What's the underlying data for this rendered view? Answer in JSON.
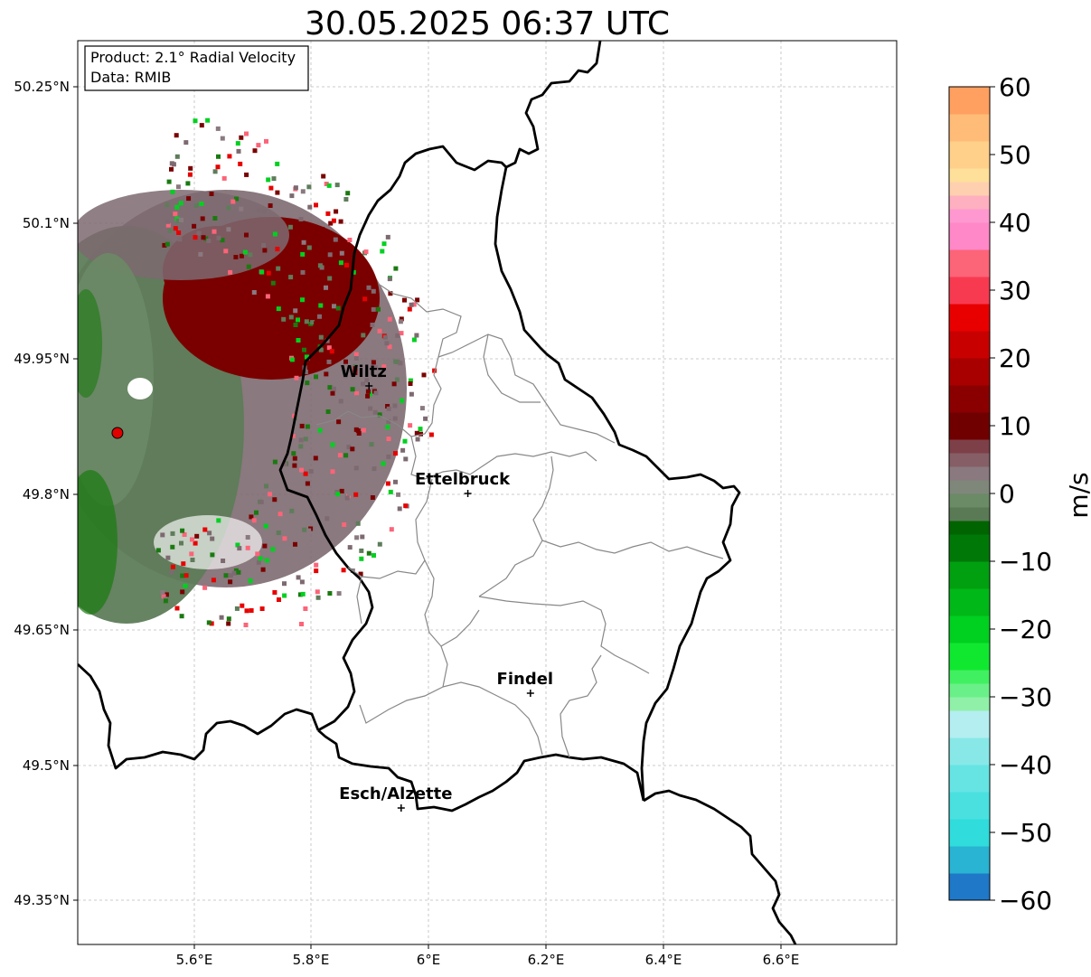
{
  "title": "30.05.2025 06:37 UTC",
  "info_box": {
    "product": "Product: 2.1° Radial Velocity",
    "data": "Data: RMIB"
  },
  "map": {
    "x_ticks": [
      "5.6°E",
      "5.8°E",
      "6°E",
      "6.2°E",
      "6.4°E",
      "6.6°E"
    ],
    "y_ticks": [
      "50.25°N",
      "50.1°N",
      "49.95°N",
      "49.8°N",
      "49.65°N",
      "49.5°N",
      "49.35°N"
    ],
    "lon_range": [
      5.4,
      6.8
    ],
    "lat_range": [
      49.3,
      50.3
    ],
    "grid": true,
    "cities": [
      {
        "name": "Wiltz",
        "lon": 5.935,
        "lat": 49.967
      },
      {
        "name": "Ettelbruck",
        "lon": 6.104,
        "lat": 49.848
      },
      {
        "name": "Findel",
        "lon": 6.211,
        "lat": 49.627
      },
      {
        "name": "Esch/Alzette",
        "lon": 5.99,
        "lat": 49.5
      }
    ],
    "radar_site": {
      "lon": 5.505,
      "lat": 49.915,
      "color": "#e00000"
    }
  },
  "colorbar": {
    "label": "m/s",
    "ticks": [
      "60",
      "50",
      "40",
      "30",
      "20",
      "10",
      "0",
      "−10",
      "−20",
      "−30",
      "−40",
      "−50",
      "−60"
    ],
    "range": [
      -60,
      60
    ],
    "stops": [
      {
        "from": -60,
        "color": "#1f78c8"
      },
      {
        "from": -56,
        "color": "#28b4d2"
      },
      {
        "from": -52,
        "color": "#30dcdc"
      },
      {
        "from": -48,
        "color": "#4ae0e0"
      },
      {
        "from": -44,
        "color": "#66e4e4"
      },
      {
        "from": -40,
        "color": "#88e8e8"
      },
      {
        "from": -36,
        "color": "#b4eef0"
      },
      {
        "from": -32,
        "color": "#90f0a8"
      },
      {
        "from": -30,
        "color": "#6af088"
      },
      {
        "from": -28,
        "color": "#40f060"
      },
      {
        "from": -26,
        "color": "#10e830"
      },
      {
        "from": -22,
        "color": "#00d020"
      },
      {
        "from": -18,
        "color": "#00b818"
      },
      {
        "from": -14,
        "color": "#00a010"
      },
      {
        "from": -10,
        "color": "#007808"
      },
      {
        "from": -6,
        "color": "#006400"
      },
      {
        "from": -4,
        "color": "#5a7a55"
      },
      {
        "from": -2,
        "color": "#6b8a66"
      },
      {
        "from": 0,
        "color": "#7f877a"
      },
      {
        "from": 2,
        "color": "#8a7a80"
      },
      {
        "from": 4,
        "color": "#865e66"
      },
      {
        "from": 6,
        "color": "#7e4048"
      },
      {
        "from": 8,
        "color": "#700000"
      },
      {
        "from": 12,
        "color": "#8a0000"
      },
      {
        "from": 16,
        "color": "#a80000"
      },
      {
        "from": 20,
        "color": "#c80000"
      },
      {
        "from": 24,
        "color": "#e80000"
      },
      {
        "from": 28,
        "color": "#f83a50"
      },
      {
        "from": 32,
        "color": "#fc6478"
      },
      {
        "from": 36,
        "color": "#ff88c8"
      },
      {
        "from": 40,
        "color": "#ff98d0"
      },
      {
        "from": 42,
        "color": "#ffb0c0"
      },
      {
        "from": 44,
        "color": "#ffd0b0"
      },
      {
        "from": 46,
        "color": "#ffe09a"
      },
      {
        "from": 48,
        "color": "#ffd08a"
      },
      {
        "from": 52,
        "color": "#ffbc78"
      },
      {
        "from": 56,
        "color": "#ffa060"
      }
    ]
  },
  "colors": {
    "border": "#000000",
    "admin": "#888888",
    "grid": "#bbbbbb",
    "outbound": "#7a0000",
    "inbound": "#5e7c5a",
    "zero": "#7d7478",
    "strong_inbound": "#1a7a10"
  }
}
